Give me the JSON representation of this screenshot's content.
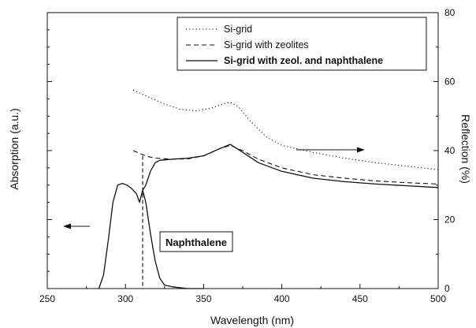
{
  "chart_data": {
    "type": "line",
    "title": "",
    "xlabel": "Wavelength (nm)",
    "ylabel_left": "Absorption (a.u.)",
    "ylabel_right": "Reflection (%)",
    "xlim": [
      250,
      500
    ],
    "ylim_right": [
      0,
      80
    ],
    "x_ticks": [
      250,
      300,
      350,
      400,
      450,
      500
    ],
    "y_right_ticks": [
      0,
      20,
      40,
      60,
      80
    ],
    "grid": false,
    "legend_position": "top-right",
    "series": [
      {
        "name": "Si-grid",
        "style": "dotted",
        "axis": "right",
        "x": [
          305,
          315,
          325,
          335,
          345,
          355,
          362,
          367,
          372,
          380,
          390,
          400,
          420,
          440,
          460,
          480,
          500
        ],
        "y": [
          57.5,
          55.5,
          53.5,
          52.0,
          51.5,
          52.3,
          53.5,
          54.0,
          52.8,
          48.5,
          44.0,
          41.5,
          39.5,
          37.8,
          36.5,
          35.5,
          34.5
        ]
      },
      {
        "name": "Si-grid with zeolites",
        "style": "dashed",
        "axis": "right",
        "x": [
          305,
          310,
          315,
          320,
          330,
          340,
          350,
          360,
          367,
          375,
          385,
          400,
          420,
          440,
          460,
          480,
          500
        ],
        "y": [
          40.0,
          39.0,
          38.2,
          37.8,
          37.5,
          37.6,
          38.5,
          40.5,
          41.5,
          40.0,
          37.5,
          35.0,
          33.0,
          32.0,
          31.2,
          30.7,
          30.3
        ]
      },
      {
        "name": "Si-grid with zeol. and naphthalene",
        "style": "solid",
        "axis": "right",
        "x": [
          283,
          286,
          289,
          292,
          295,
          298,
          301,
          304,
          307,
          309,
          311,
          313,
          316,
          319,
          322,
          325,
          330,
          340,
          350,
          360,
          367,
          375,
          385,
          400,
          420,
          440,
          460,
          480,
          500
        ],
        "y": [
          0,
          4,
          14,
          25,
          30,
          30.5,
          30,
          29,
          27.5,
          25,
          28.5,
          30,
          34,
          36.5,
          37.2,
          37.3,
          37.5,
          37.8,
          38.5,
          40.5,
          41.8,
          39.5,
          36.5,
          34.0,
          32.0,
          31.0,
          30.3,
          29.8,
          29.3
        ]
      },
      {
        "name": "",
        "style": "solid",
        "axis": "right",
        "x": [
          311,
          313,
          316,
          319,
          322,
          325,
          330,
          340,
          350
        ],
        "y": [
          28.5,
          25,
          16,
          8,
          3,
          1,
          0.5,
          0,
          0
        ]
      }
    ],
    "annotations": [
      {
        "text": "Naphthalene",
        "x": 311,
        "style": "dashed vertical line at x"
      },
      {
        "text": "",
        "arrow": "left",
        "meaning": "absorption curve uses left axis"
      },
      {
        "text": "",
        "arrow": "right",
        "meaning": "reflection curves use right axis"
      }
    ]
  }
}
